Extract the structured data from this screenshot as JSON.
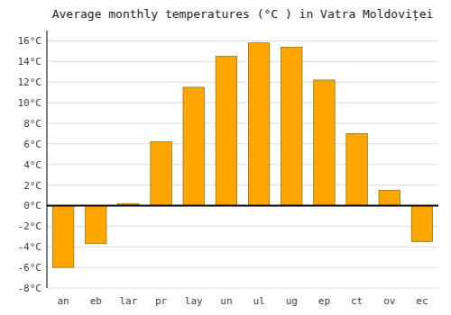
{
  "chart_data": {
    "type": "bar",
    "title": "Average monthly temperatures (°C ) in Vatra Moldoviței",
    "categories": [
      "an",
      "eb",
      "lar",
      "pr",
      "lay",
      "un",
      "ul",
      "ug",
      "ep",
      "ct",
      "ov",
      "ec"
    ],
    "values": [
      -6.0,
      -3.7,
      0.2,
      6.2,
      11.5,
      14.5,
      15.8,
      15.4,
      12.2,
      7.0,
      1.5,
      -3.5
    ],
    "color": "#FFA500",
    "ylim": [
      -8,
      17
    ],
    "yticks": [
      {
        "value": -8,
        "label": "-8°C"
      },
      {
        "value": -6,
        "label": "-6°C"
      },
      {
        "value": -4,
        "label": "-4°C"
      },
      {
        "value": -2,
        "label": "-2°C"
      },
      {
        "value": 0,
        "label": "0°C"
      },
      {
        "value": 2,
        "label": "2°C"
      },
      {
        "value": 4,
        "label": "4°C"
      },
      {
        "value": 6,
        "label": "6°C"
      },
      {
        "value": 8,
        "label": "8°C"
      },
      {
        "value": 10,
        "label": "10°C"
      },
      {
        "value": 12,
        "label": "12°C"
      },
      {
        "value": 14,
        "label": "14°C"
      },
      {
        "value": 16,
        "label": "16°C"
      }
    ],
    "grid": true
  }
}
